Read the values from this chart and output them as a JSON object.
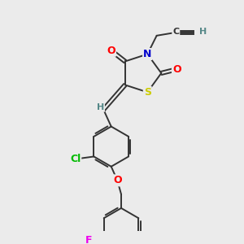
{
  "bg_color": "#ebebeb",
  "atom_colors": {
    "O": "#ff0000",
    "N": "#0000cc",
    "S": "#cccc00",
    "Cl": "#00bb00",
    "F": "#ee00ee",
    "C": "#333333",
    "H": "#558888"
  },
  "bond_color": "#333333",
  "bond_width": 1.4,
  "font_size": 9
}
